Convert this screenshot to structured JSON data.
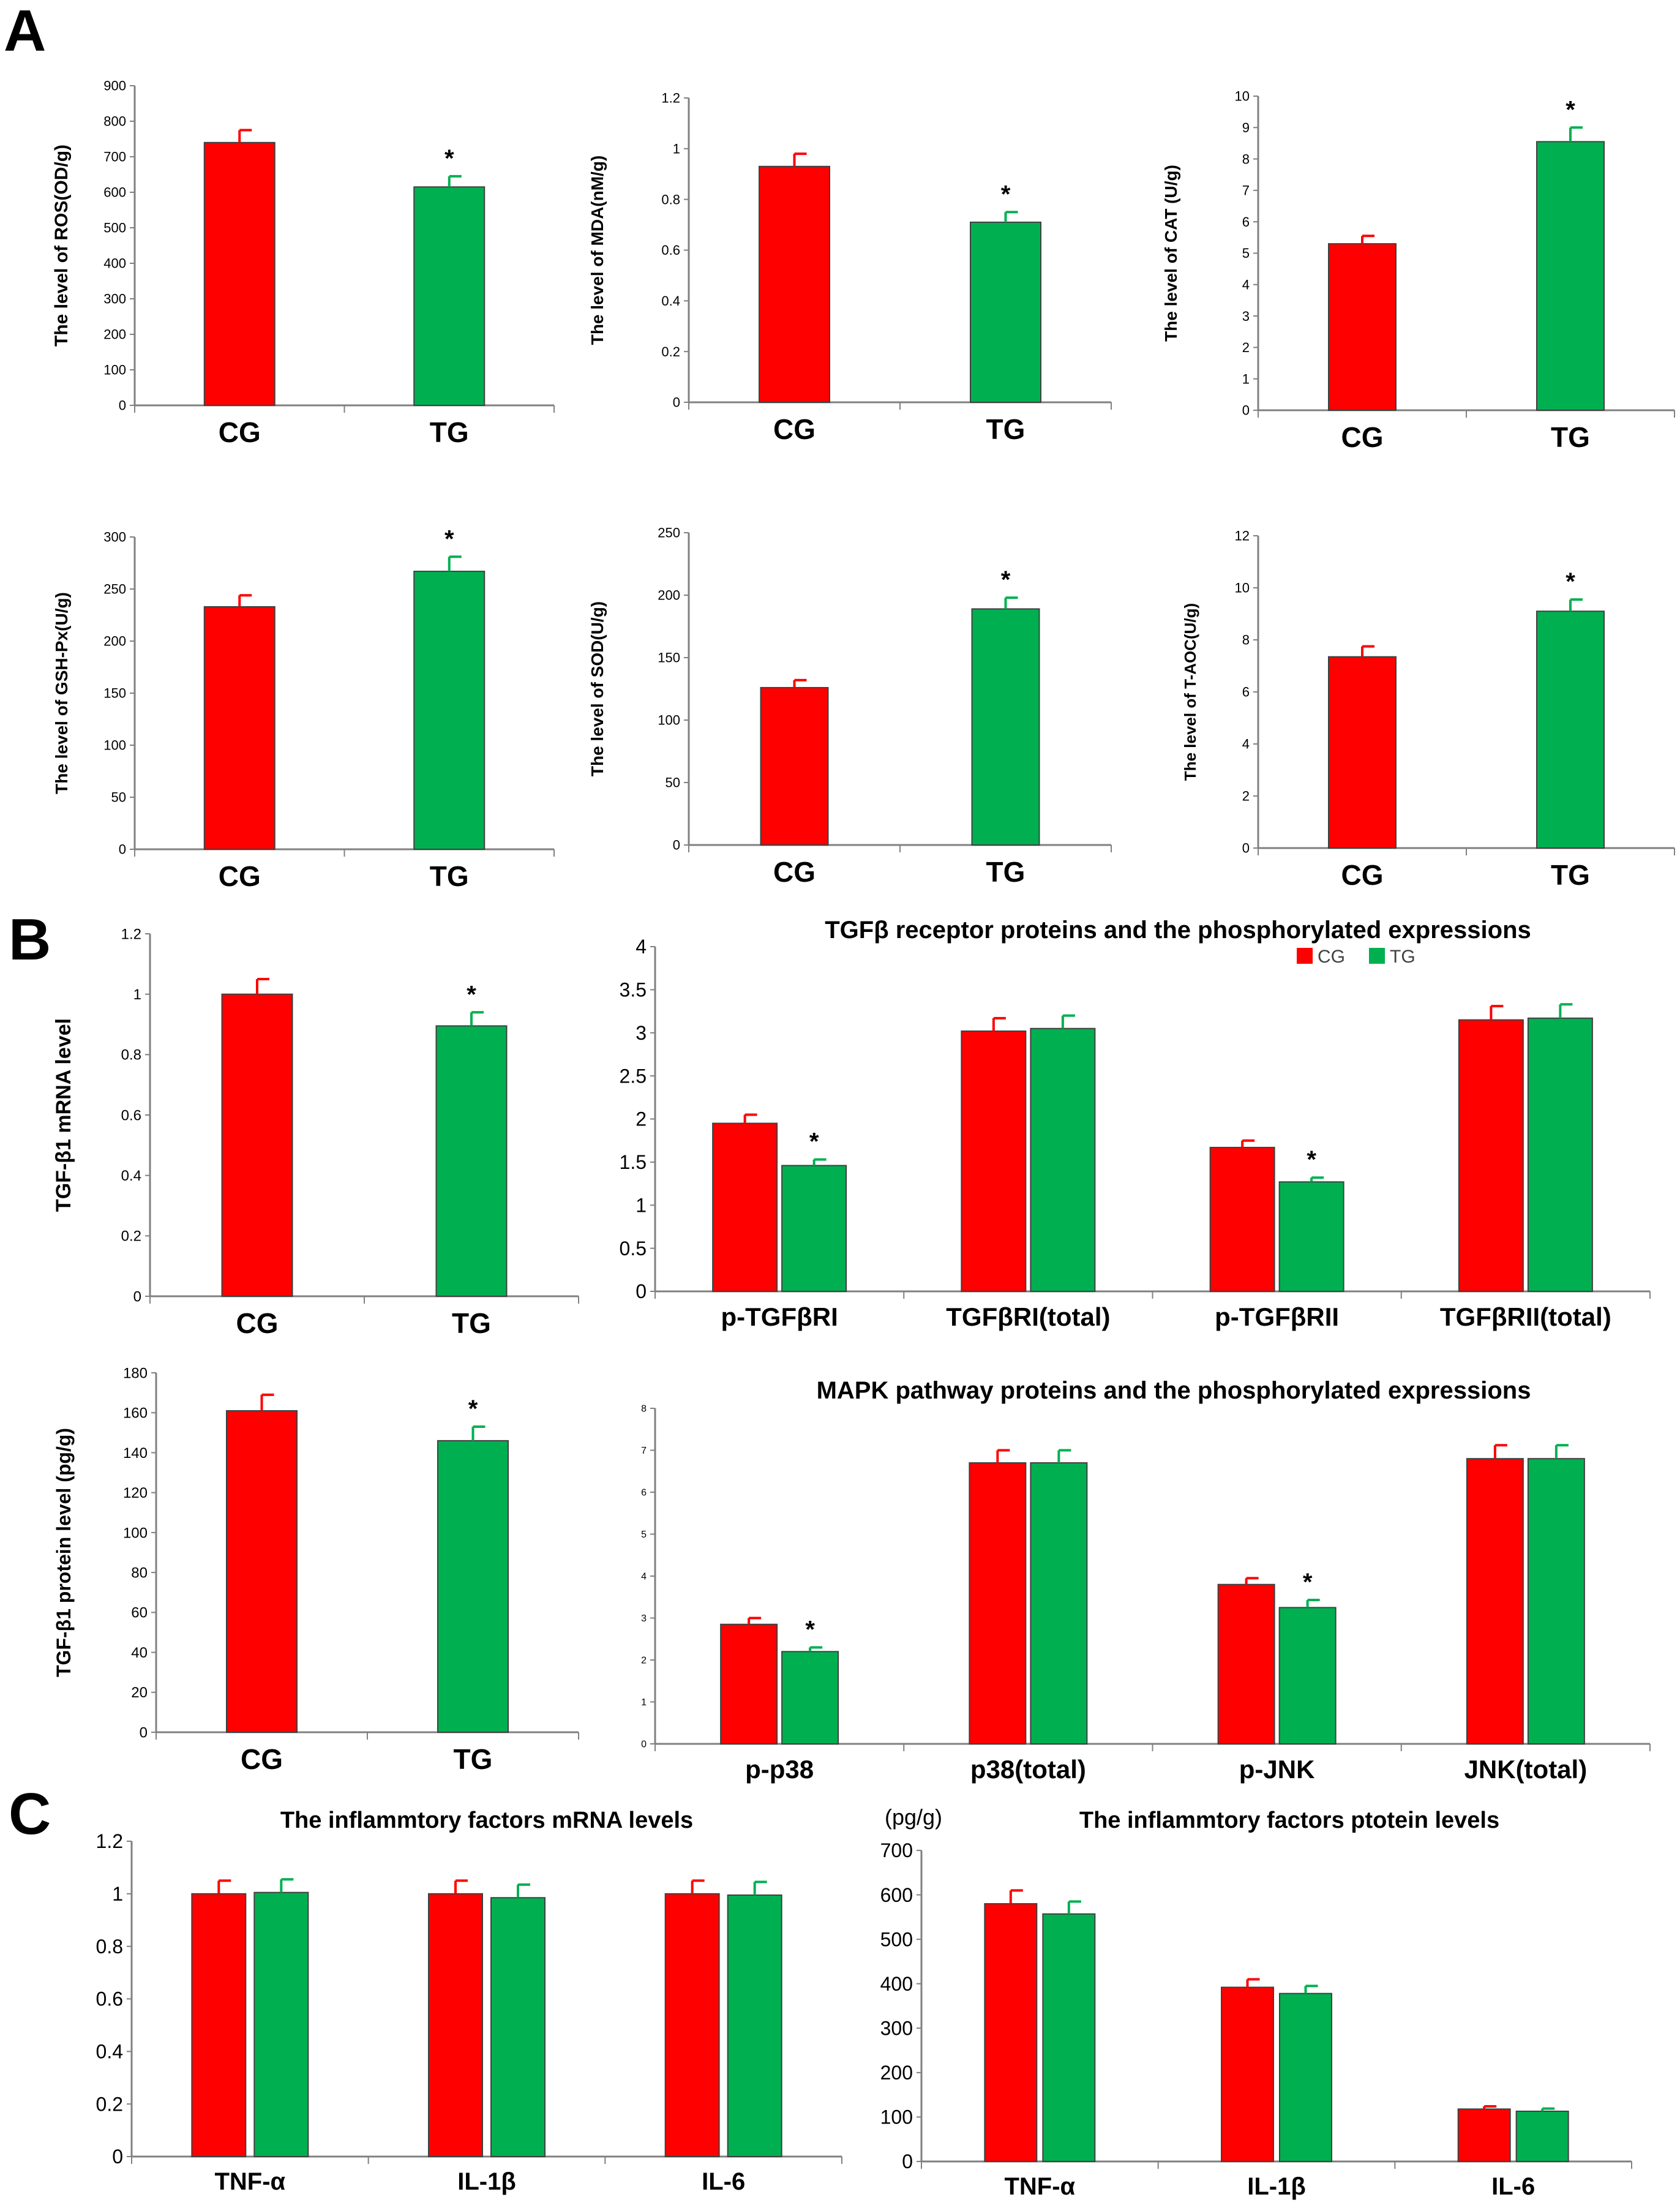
{
  "panel_labels": [
    "A",
    "B",
    "C"
  ],
  "colors": {
    "CG": "#ff0000",
    "TG": "#00b050",
    "axis": "#808080",
    "text": "#000000"
  },
  "chart_data": [
    {
      "id": "ros",
      "type": "bar",
      "title": "",
      "xlabel": "",
      "ylabel": "The level of ROS(OD/g)",
      "ylabel_font": "serif",
      "categories": [
        "CG",
        "TG"
      ],
      "series": [
        {
          "values": [
            740,
            615
          ],
          "errors": [
            35,
            30
          ]
        }
      ],
      "significance": [
        "",
        "*"
      ],
      "ylim": [
        0,
        900
      ],
      "ticks": [
        0,
        100,
        200,
        300,
        400,
        500,
        600,
        700,
        800,
        900
      ],
      "legend": null,
      "grid": false
    },
    {
      "id": "mda",
      "type": "bar",
      "title": "",
      "xlabel": "",
      "ylabel": "The level of MDA(nM/g)",
      "ylabel_font": "serif",
      "categories": [
        "CG",
        "TG"
      ],
      "series": [
        {
          "values": [
            0.93,
            0.71
          ],
          "errors": [
            0.05,
            0.04
          ]
        }
      ],
      "significance": [
        "",
        "*"
      ],
      "ylim": [
        0,
        1.2
      ],
      "ticks": [
        0,
        0.2,
        0.4,
        0.6,
        0.8,
        1,
        1.2
      ],
      "legend": null,
      "grid": false
    },
    {
      "id": "cat",
      "type": "bar",
      "title": "",
      "xlabel": "",
      "ylabel": "The level of CAT (U/g)",
      "ylabel_font": "serif",
      "categories": [
        "CG",
        "TG"
      ],
      "series": [
        {
          "values": [
            5.3,
            8.55
          ],
          "errors": [
            0.25,
            0.45
          ]
        }
      ],
      "significance": [
        "",
        "*"
      ],
      "ylim": [
        0,
        10
      ],
      "ticks": [
        0,
        1,
        2,
        3,
        4,
        5,
        6,
        7,
        8,
        9,
        10
      ],
      "legend": null,
      "grid": false
    },
    {
      "id": "gshpx",
      "type": "bar",
      "title": "",
      "xlabel": "",
      "ylabel": "The level of GSH-Px(U/g)",
      "ylabel_font": "serif",
      "categories": [
        "CG",
        "TG"
      ],
      "series": [
        {
          "values": [
            233,
            267
          ],
          "errors": [
            11,
            14
          ]
        }
      ],
      "significance": [
        "",
        "*"
      ],
      "ylim": [
        0,
        300
      ],
      "ticks": [
        0,
        50,
        100,
        150,
        200,
        250,
        300
      ],
      "legend": null,
      "grid": false
    },
    {
      "id": "sod",
      "type": "bar",
      "title": "",
      "xlabel": "",
      "ylabel": "The level of SOD(U/g)",
      "ylabel_font": "serif",
      "categories": [
        "CG",
        "TG"
      ],
      "series": [
        {
          "values": [
            126,
            189
          ],
          "errors": [
            6,
            9
          ]
        }
      ],
      "significance": [
        "",
        "*"
      ],
      "ylim": [
        0,
        250
      ],
      "ticks": [
        0,
        50,
        100,
        150,
        200,
        250
      ],
      "legend": null,
      "grid": false
    },
    {
      "id": "taoc",
      "type": "bar",
      "title": "",
      "xlabel": "",
      "ylabel": "The level of T-AOC(U/g)",
      "ylabel_font": "serif",
      "categories": [
        "CG",
        "TG"
      ],
      "series": [
        {
          "values": [
            7.35,
            9.1
          ],
          "errors": [
            0.4,
            0.45
          ]
        }
      ],
      "significance": [
        "",
        "*"
      ],
      "ylim": [
        0,
        12
      ],
      "ticks": [
        0,
        2,
        4,
        6,
        8,
        10,
        12
      ],
      "legend": null,
      "grid": false
    },
    {
      "id": "tgfb1_mrna",
      "type": "bar",
      "title": "",
      "xlabel": "",
      "ylabel": "TGF-β1 mRNA level",
      "ylabel_font": "sans",
      "categories": [
        "CG",
        "TG"
      ],
      "series": [
        {
          "values": [
            1.0,
            0.895
          ],
          "errors": [
            0.05,
            0.045
          ]
        }
      ],
      "significance": [
        "",
        "*"
      ],
      "ylim": [
        0,
        1.2
      ],
      "ticks": [
        0,
        0.2,
        0.4,
        0.6,
        0.8,
        1,
        1.2
      ],
      "legend": null,
      "grid": false
    },
    {
      "id": "tgfb_receptors",
      "type": "bar",
      "title": "TGFβ receptor proteins and the phosphorylated expressions",
      "xlabel": "",
      "ylabel": "",
      "categories": [
        "p-TGFβRI",
        "TGFβRI(total)",
        "p-TGFβRII",
        "TGFβRII(total)"
      ],
      "series": [
        {
          "name": "CG",
          "values": [
            1.95,
            3.02,
            1.67,
            3.15
          ],
          "errors": [
            0.1,
            0.15,
            0.08,
            0.16
          ]
        },
        {
          "name": "TG",
          "values": [
            1.46,
            3.05,
            1.27,
            3.17
          ],
          "errors": [
            0.07,
            0.15,
            0.05,
            0.16
          ]
        }
      ],
      "significance": [
        [
          "",
          "*"
        ],
        [
          "",
          ""
        ],
        [
          "",
          "*"
        ],
        [
          "",
          ""
        ]
      ],
      "ylim": [
        0,
        4
      ],
      "ticks": [
        0,
        0.5,
        1,
        1.5,
        2,
        2.5,
        3,
        3.5,
        4
      ],
      "legend": "top-right",
      "grid": false
    },
    {
      "id": "tgfb1_protein",
      "type": "bar",
      "title": "",
      "xlabel": "",
      "ylabel": "TGF-β1 protein level (pg/g)",
      "ylabel_font": "sans",
      "categories": [
        "CG",
        "TG"
      ],
      "series": [
        {
          "values": [
            161,
            146
          ],
          "errors": [
            8,
            7
          ]
        }
      ],
      "significance": [
        "",
        "*"
      ],
      "ylim": [
        0,
        180
      ],
      "ticks": [
        0,
        20,
        40,
        60,
        80,
        100,
        120,
        140,
        160,
        180
      ],
      "legend": null,
      "grid": false
    },
    {
      "id": "mapk",
      "type": "bar",
      "title": "MAPK pathway proteins and the phosphorylated expressions",
      "xlabel": "",
      "ylabel": "",
      "categories": [
        "p-p38",
        "p38(total)",
        "p-JNK",
        "JNK(total)"
      ],
      "series": [
        {
          "name": "CG",
          "values": [
            2.85,
            6.7,
            3.8,
            6.8
          ],
          "errors": [
            0.15,
            0.3,
            0.15,
            0.32
          ]
        },
        {
          "name": "TG",
          "values": [
            2.2,
            6.7,
            3.25,
            6.8
          ],
          "errors": [
            0.1,
            0.3,
            0.18,
            0.32
          ]
        }
      ],
      "significance": [
        [
          "",
          "*"
        ],
        [
          "",
          ""
        ],
        [
          "",
          "*"
        ],
        [
          "",
          ""
        ]
      ],
      "ylim": [
        0,
        8
      ],
      "ticks": [
        0,
        1,
        2,
        3,
        4,
        5,
        6,
        7,
        8
      ],
      "legend": null,
      "grid": false
    },
    {
      "id": "inflam_mrna",
      "type": "bar",
      "title": "The inflammtory factors mRNA levels",
      "xlabel": "",
      "ylabel": "",
      "categories": [
        "TNF-α",
        "IL-1β",
        "IL-6"
      ],
      "series": [
        {
          "name": "CG",
          "values": [
            1.0,
            1.0,
            1.0
          ],
          "errors": [
            0.05,
            0.05,
            0.05
          ]
        },
        {
          "name": "TG",
          "values": [
            1.005,
            0.985,
            0.995
          ],
          "errors": [
            0.05,
            0.05,
            0.05
          ]
        }
      ],
      "significance": [
        [
          "",
          ""
        ],
        [
          "",
          ""
        ],
        [
          "",
          ""
        ]
      ],
      "ylim": [
        0,
        1.2
      ],
      "ticks": [
        0,
        0.2,
        0.4,
        0.6,
        0.8,
        1,
        1.2
      ],
      "legend": null,
      "grid": false
    },
    {
      "id": "inflam_protein",
      "type": "bar",
      "title": "The inflammtory factors ptotein levels",
      "unit_label": "(pg/g)",
      "xlabel": "",
      "ylabel": "",
      "categories": [
        "TNF-α",
        "IL-1β",
        "IL-6"
      ],
      "series": [
        {
          "name": "CG",
          "values": [
            580,
            392,
            118
          ],
          "errors": [
            30,
            18,
            6
          ]
        },
        {
          "name": "TG",
          "values": [
            557,
            378,
            113
          ],
          "errors": [
            28,
            17,
            6
          ]
        }
      ],
      "significance": [
        [
          "",
          ""
        ],
        [
          "",
          ""
        ],
        [
          "",
          ""
        ]
      ],
      "ylim": [
        0,
        700
      ],
      "ticks": [
        0,
        100,
        200,
        300,
        400,
        500,
        600,
        700
      ],
      "legend": null,
      "grid": false
    }
  ]
}
